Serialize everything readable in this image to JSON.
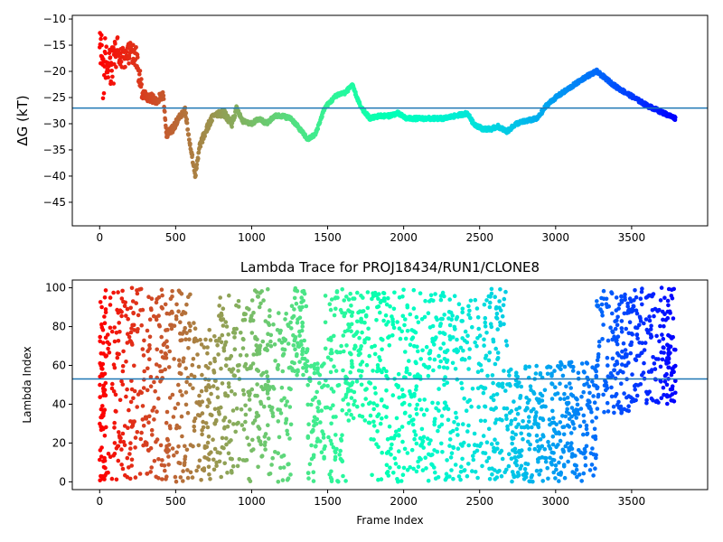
{
  "chart_data": [
    {
      "type": "scatter",
      "title": "",
      "xlabel": "",
      "ylabel": "ΔG (kT)",
      "xlim": [
        -180,
        4000
      ],
      "ylim": [
        -49.5,
        -9.3
      ],
      "xticks": [
        0,
        500,
        1000,
        1500,
        2000,
        2500,
        3000,
        3500
      ],
      "yticks": [
        -10,
        -15,
        -20,
        -25,
        -30,
        -35,
        -40,
        -45
      ],
      "xtick_labels": [
        "0",
        "500",
        "1000",
        "1500",
        "2000",
        "2500",
        "3000",
        "3500"
      ],
      "ytick_labels": [
        "−10",
        "−15",
        "−20",
        "−25",
        "−30",
        "−35",
        "−40",
        "−45"
      ],
      "hline": -27,
      "colormap": "rainbow (red at frame 0 to violet at the last frame)",
      "grid": false,
      "n_frames": 3790,
      "trace_knots": [
        [
          0,
          -16
        ],
        [
          40,
          -18
        ],
        [
          80,
          -19
        ],
        [
          120,
          -17
        ],
        [
          160,
          -17.5
        ],
        [
          200,
          -16.5
        ],
        [
          240,
          -17
        ],
        [
          280,
          -24.5
        ],
        [
          330,
          -25
        ],
        [
          380,
          -25.5
        ],
        [
          420,
          -24.5
        ],
        [
          440,
          -32
        ],
        [
          480,
          -31
        ],
        [
          520,
          -29
        ],
        [
          560,
          -27
        ],
        [
          590,
          -33
        ],
        [
          630,
          -40
        ],
        [
          660,
          -34
        ],
        [
          720,
          -30
        ],
        [
          760,
          -28
        ],
        [
          820,
          -28
        ],
        [
          870,
          -30
        ],
        [
          900,
          -27
        ],
        [
          940,
          -29.5
        ],
        [
          1000,
          -30
        ],
        [
          1050,
          -29
        ],
        [
          1100,
          -30
        ],
        [
          1150,
          -28.5
        ],
        [
          1200,
          -28.5
        ],
        [
          1260,
          -29
        ],
        [
          1330,
          -31.5
        ],
        [
          1370,
          -33
        ],
        [
          1420,
          -32
        ],
        [
          1480,
          -27
        ],
        [
          1560,
          -24.5
        ],
        [
          1620,
          -24
        ],
        [
          1660,
          -22.5
        ],
        [
          1720,
          -27
        ],
        [
          1780,
          -29
        ],
        [
          1840,
          -28.5
        ],
        [
          1900,
          -28.5
        ],
        [
          1960,
          -28
        ],
        [
          2020,
          -29
        ],
        [
          2100,
          -29
        ],
        [
          2160,
          -29
        ],
        [
          2260,
          -29
        ],
        [
          2340,
          -28.5
        ],
        [
          2420,
          -28
        ],
        [
          2460,
          -30
        ],
        [
          2520,
          -31
        ],
        [
          2580,
          -31
        ],
        [
          2620,
          -30.5
        ],
        [
          2680,
          -31.5
        ],
        [
          2740,
          -30
        ],
        [
          2800,
          -29.5
        ],
        [
          2880,
          -29
        ],
        [
          2940,
          -26.5
        ],
        [
          3000,
          -25
        ],
        [
          3100,
          -23
        ],
        [
          3200,
          -21
        ],
        [
          3270,
          -20
        ],
        [
          3400,
          -23
        ],
        [
          3600,
          -26.5
        ],
        [
          3790,
          -29
        ]
      ]
    },
    {
      "type": "scatter",
      "title": "Lambda Trace for PROJ18434/RUN1/CLONE8",
      "xlabel": "Frame Index",
      "ylabel": "Lambda Index",
      "xlim": [
        -180,
        4000
      ],
      "ylim": [
        -4,
        104
      ],
      "xticks": [
        0,
        500,
        1000,
        1500,
        2000,
        2500,
        3000,
        3500
      ],
      "yticks": [
        0,
        20,
        40,
        60,
        80,
        100
      ],
      "xtick_labels": [
        "0",
        "500",
        "1000",
        "1500",
        "2000",
        "2500",
        "3000",
        "3500"
      ],
      "ytick_labels": [
        "0",
        "20",
        "40",
        "60",
        "80",
        "100"
      ],
      "hline": 53,
      "colormap": "rainbow (red at frame 0 to violet at the last frame)",
      "grid": false,
      "n_frames": 3790,
      "band_segments": [
        [
          0,
          100,
          0,
          100
        ],
        [
          100,
          150,
          0,
          100
        ],
        [
          150,
          280,
          0,
          100
        ],
        [
          280,
          440,
          0,
          100
        ],
        [
          440,
          620,
          0,
          100
        ],
        [
          620,
          780,
          0,
          80
        ],
        [
          780,
          1000,
          0,
          100
        ],
        [
          1000,
          1230,
          0,
          100
        ],
        [
          1230,
          1260,
          0,
          100
        ],
        [
          1260,
          1370,
          55,
          100
        ],
        [
          1370,
          1480,
          0,
          65
        ],
        [
          1480,
          1620,
          0,
          100
        ],
        [
          1620,
          1780,
          30,
          100
        ],
        [
          1780,
          2000,
          0,
          100
        ],
        [
          2000,
          2200,
          0,
          100
        ],
        [
          2200,
          2460,
          0,
          100
        ],
        [
          2460,
          2680,
          0,
          100
        ],
        [
          2680,
          2800,
          0,
          58
        ],
        [
          2800,
          3000,
          0,
          60
        ],
        [
          3000,
          3270,
          0,
          62
        ],
        [
          3270,
          3500,
          35,
          100
        ],
        [
          3500,
          3790,
          40,
          100
        ]
      ]
    }
  ]
}
